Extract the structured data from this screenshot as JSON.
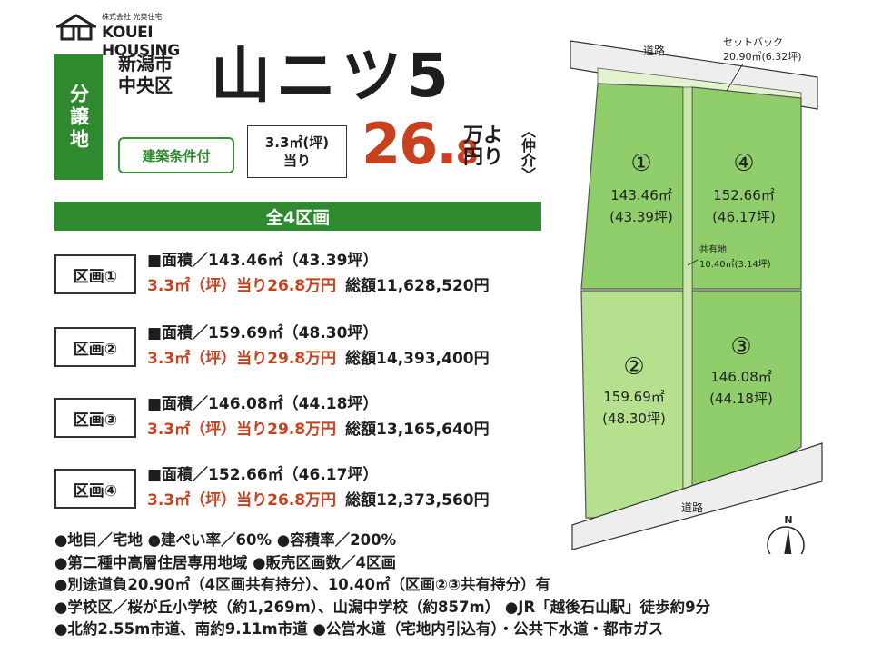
{
  "logo": {
    "company_small": "株式会社 光英住宅",
    "company_name": "KOUEI HOUSING"
  },
  "header": {
    "category": "分譲地",
    "city_line1": "新潟市",
    "city_line2": "中央区",
    "area_name": "山ニツ5",
    "condition": "建築条件付",
    "per_unit_line1": "3.3㎡(坪)",
    "per_unit_line2": "当り",
    "price_main": "26.",
    "price_decimal": "8",
    "price_unit_line1": "万よ",
    "price_unit_line2": "円り",
    "agent_note": "〈仲介〉"
  },
  "all_lots_label": "全4区画",
  "lots": [
    {
      "tag": "区画①",
      "area_line": "■面積／143.46㎡（43.39坪）",
      "price_line": "3.3㎡（坪）当り26.8万円",
      "total": "総額11,628,520円"
    },
    {
      "tag": "区画②",
      "area_line": "■面積／159.69㎡（48.30坪）",
      "price_line": "3.3㎡（坪）当り29.8万円",
      "total": "総額14,393,400円"
    },
    {
      "tag": "区画③",
      "area_line": "■面積／146.08㎡（44.18坪）",
      "price_line": "3.3㎡（坪）当り29.8万円",
      "total": "総額13,165,640円"
    },
    {
      "tag": "区画④",
      "area_line": "■面積／152.66㎡（46.17坪）",
      "price_line": "3.3㎡（坪）当り26.8万円",
      "total": "総額12,373,560円"
    }
  ],
  "notes": [
    "●地目／宅地 ●建ぺい率／60% ●容積率／200%",
    "●第二種中高層住居専用地域 ●販売区画数／4区画",
    "●別途道負20.90㎡（4区画共有持分）、10.40㎡（区画②③共有持分）有",
    "●学校区／桜が丘小学校（約1,269m）、山潟中学校（約857m） ●JR「越後石山駅」徒歩約9分",
    "●北約2.55m市道、南約9.11m市道 ●公営水道（宅地内引込有）・公共下水道・都市ガス"
  ],
  "map": {
    "road_top": "道路",
    "road_bottom": "道路",
    "setback_label": "セットバック",
    "setback_area": "20.90㎡(6.32坪)",
    "shared_label": "共有地",
    "shared_area": "10.40㎡(3.14坪)",
    "north": "N",
    "parcels": [
      {
        "num": "①",
        "sqm": "143.46㎡",
        "tsubo": "(43.39坪)"
      },
      {
        "num": "②",
        "sqm": "159.69㎡",
        "tsubo": "(48.30坪)"
      },
      {
        "num": "③",
        "sqm": "146.08㎡",
        "tsubo": "(44.18坪)"
      },
      {
        "num": "④",
        "sqm": "152.66㎡",
        "tsubo": "(46.17坪)"
      }
    ],
    "colors": {
      "parcel_green": "#8fce6a",
      "road_gray": "#eeeeee",
      "setback_green": "#e4f3cf",
      "accent_red": "#c7401f",
      "brand_green": "#2f8a2f"
    }
  }
}
